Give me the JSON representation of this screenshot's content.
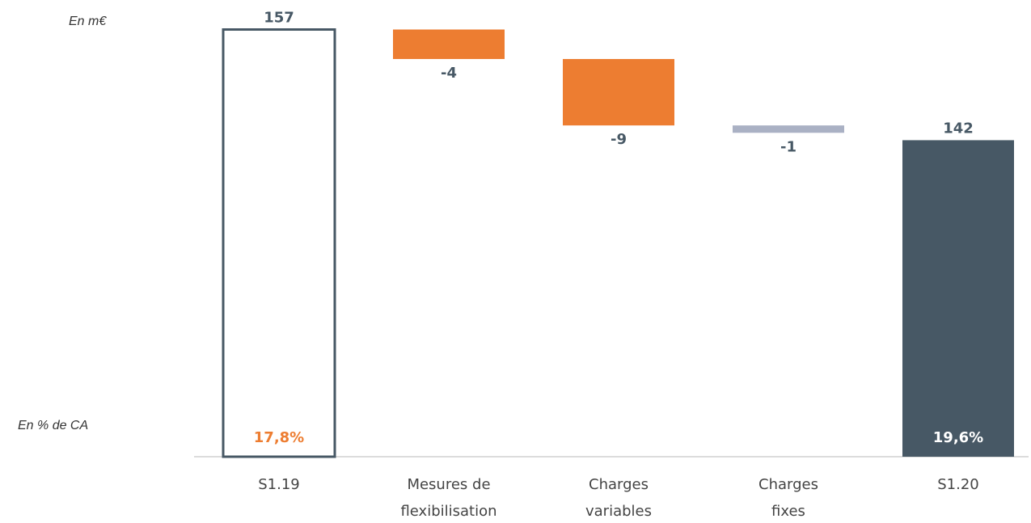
{
  "chart_data": {
    "type": "waterfall",
    "unit_note": "En m€",
    "percent_note": "En % de CA",
    "categories": [
      [
        "S1.19"
      ],
      [
        "Mesures de",
        "flexibilisation"
      ],
      [
        "Charges",
        "variables"
      ],
      [
        "Charges",
        "fixes"
      ],
      [
        "S1.20"
      ]
    ],
    "values": [
      157,
      -4,
      -9,
      -1,
      142
    ],
    "kinds": [
      "total",
      "delta",
      "delta",
      "delta",
      "total"
    ],
    "fills": [
      "none",
      "#ed7d31",
      "#ed7d31",
      "#aab1c4",
      "#475865"
    ],
    "edge_color": "#475865",
    "percent_labels": [
      "17,8%",
      null,
      null,
      null,
      "19,6%"
    ],
    "percent_colors": [
      "#ed7d31",
      null,
      null,
      null,
      "#ffffff"
    ],
    "ylim": [
      99.1,
      161
    ]
  }
}
